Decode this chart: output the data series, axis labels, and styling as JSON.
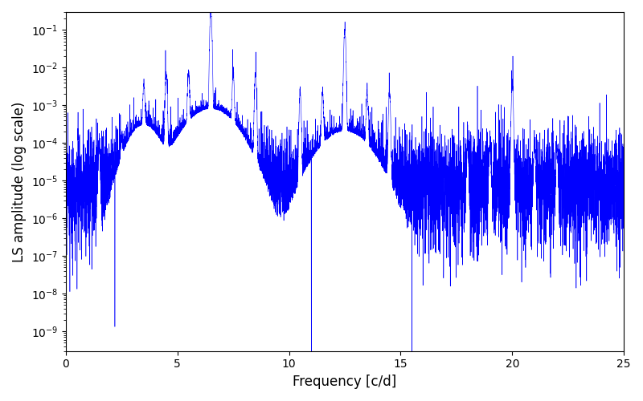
{
  "title": "",
  "xlabel": "Frequency [c/d]",
  "ylabel": "LS amplitude (log scale)",
  "line_color": "#0000ff",
  "xlim": [
    0,
    25
  ],
  "ylim": [
    3e-10,
    0.3
  ],
  "figsize": [
    8.0,
    5.0
  ],
  "dpi": 100,
  "peak_freqs": [
    3.5,
    6.5,
    12.5,
    20.0
  ],
  "peak_amps": [
    0.003,
    0.3,
    0.09,
    0.003
  ],
  "background_level": 1e-05,
  "freq_min": 0.0,
  "freq_max": 25.0,
  "freq_n": 8000,
  "seed": 12
}
